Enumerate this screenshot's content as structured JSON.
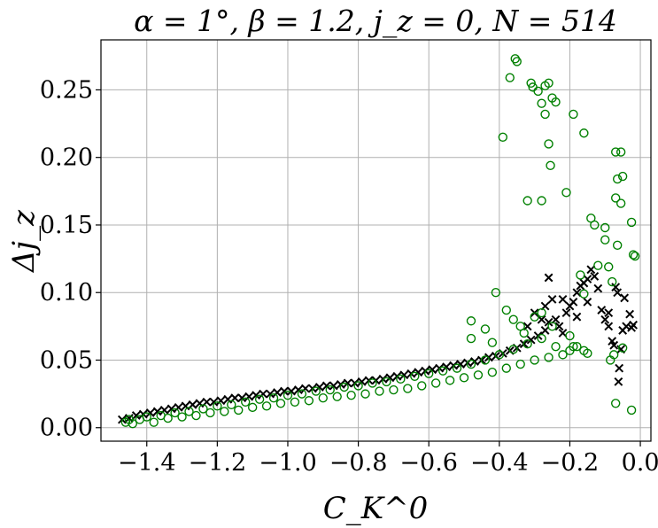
{
  "chart_data": {
    "type": "scatter",
    "title": "α = 1°,  β = 1.2,  j_z = 0,  N = 514",
    "xlabel": "C_K^0",
    "ylabel": "Δj_z",
    "xlim": [
      -1.53,
      0.03
    ],
    "ylim": [
      -0.01,
      0.287
    ],
    "grid": true,
    "x_ticks": [
      -1.4,
      -1.2,
      -1.0,
      -0.8,
      -0.6,
      -0.4,
      -0.2,
      0.0
    ],
    "x_tick_labels": [
      "−1.4",
      "−1.2",
      "−1.0",
      "−0.8",
      "−0.6",
      "−0.4",
      "−0.2",
      "0.0"
    ],
    "y_ticks": [
      0.0,
      0.05,
      0.1,
      0.15,
      0.2,
      0.25
    ],
    "y_tick_labels": [
      "0.00",
      "0.05",
      "0.10",
      "0.15",
      "0.20",
      "0.25"
    ],
    "series": [
      {
        "marker": "x",
        "color": "#000000",
        "points": [
          [
            -1.47,
            0.006
          ],
          [
            -1.45,
            0.007
          ],
          [
            -1.43,
            0.009
          ],
          [
            -1.41,
            0.01
          ],
          [
            -1.39,
            0.011
          ],
          [
            -1.37,
            0.012
          ],
          [
            -1.35,
            0.013
          ],
          [
            -1.33,
            0.014
          ],
          [
            -1.31,
            0.015
          ],
          [
            -1.29,
            0.016
          ],
          [
            -1.27,
            0.017
          ],
          [
            -1.25,
            0.018
          ],
          [
            -1.23,
            0.019
          ],
          [
            -1.21,
            0.019
          ],
          [
            -1.19,
            0.02
          ],
          [
            -1.17,
            0.021
          ],
          [
            -1.15,
            0.022
          ],
          [
            -1.13,
            0.022
          ],
          [
            -1.11,
            0.023
          ],
          [
            -1.09,
            0.024
          ],
          [
            -1.07,
            0.025
          ],
          [
            -1.05,
            0.025
          ],
          [
            -1.03,
            0.026
          ],
          [
            -1.01,
            0.027
          ],
          [
            -0.99,
            0.027
          ],
          [
            -0.97,
            0.028
          ],
          [
            -0.95,
            0.029
          ],
          [
            -0.93,
            0.029
          ],
          [
            -0.91,
            0.03
          ],
          [
            -0.89,
            0.031
          ],
          [
            -0.87,
            0.031
          ],
          [
            -0.85,
            0.032
          ],
          [
            -0.83,
            0.033
          ],
          [
            -0.81,
            0.033
          ],
          [
            -0.79,
            0.034
          ],
          [
            -0.77,
            0.035
          ],
          [
            -0.75,
            0.035
          ],
          [
            -0.73,
            0.036
          ],
          [
            -0.71,
            0.037
          ],
          [
            -0.69,
            0.038
          ],
          [
            -0.67,
            0.039
          ],
          [
            -0.65,
            0.04
          ],
          [
            -0.63,
            0.041
          ],
          [
            -0.61,
            0.042
          ],
          [
            -0.59,
            0.043
          ],
          [
            -0.57,
            0.044
          ],
          [
            -0.55,
            0.045
          ],
          [
            -0.53,
            0.046
          ],
          [
            -0.51,
            0.047
          ],
          [
            -0.49,
            0.048
          ],
          [
            -0.47,
            0.049
          ],
          [
            -0.45,
            0.05
          ],
          [
            -0.43,
            0.052
          ],
          [
            -0.41,
            0.053
          ],
          [
            -0.39,
            0.055
          ],
          [
            -0.37,
            0.057
          ],
          [
            -0.35,
            0.059
          ],
          [
            -0.33,
            0.062
          ],
          [
            -0.31,
            0.065
          ],
          [
            -0.29,
            0.068
          ],
          [
            -0.27,
            0.072
          ],
          [
            -0.3,
            0.085
          ],
          [
            -0.27,
            0.09
          ],
          [
            -0.25,
            0.095
          ],
          [
            -0.26,
            0.111
          ],
          [
            -0.24,
            0.08
          ],
          [
            -0.23,
            0.075
          ],
          [
            -0.22,
            0.07
          ],
          [
            -0.21,
            0.085
          ],
          [
            -0.2,
            0.09
          ],
          [
            -0.19,
            0.093
          ],
          [
            -0.18,
            0.1
          ],
          [
            -0.17,
            0.105
          ],
          [
            -0.16,
            0.107
          ],
          [
            -0.15,
            0.11
          ],
          [
            -0.14,
            0.117
          ],
          [
            -0.13,
            0.112
          ],
          [
            -0.12,
            0.103
          ],
          [
            -0.11,
            0.087
          ],
          [
            -0.1,
            0.08
          ],
          [
            -0.09,
            0.075
          ],
          [
            -0.08,
            0.064
          ],
          [
            -0.075,
            0.061
          ],
          [
            -0.07,
            0.104
          ],
          [
            -0.065,
            0.1
          ],
          [
            -0.06,
            0.044
          ],
          [
            -0.062,
            0.034
          ],
          [
            -0.05,
            0.072
          ],
          [
            -0.045,
            0.096
          ],
          [
            -0.03,
            0.084
          ],
          [
            -0.025,
            0.074
          ],
          [
            -0.02,
            0.076
          ],
          [
            -0.04,
            0.075
          ],
          [
            -0.055,
            0.058
          ],
          [
            -0.09,
            0.085
          ],
          [
            -0.15,
            0.093
          ],
          [
            -0.18,
            0.082
          ],
          [
            -0.22,
            0.095
          ],
          [
            -0.26,
            0.078
          ],
          [
            -0.28,
            0.08
          ],
          [
            -0.32,
            0.075
          ]
        ]
      },
      {
        "marker": "o",
        "color": "#008000",
        "points": [
          [
            -1.46,
            0.004
          ],
          [
            -1.45,
            0.006
          ],
          [
            -1.44,
            0.003
          ],
          [
            -1.42,
            0.006
          ],
          [
            -1.4,
            0.008
          ],
          [
            -1.38,
            0.004
          ],
          [
            -1.36,
            0.009
          ],
          [
            -1.34,
            0.007
          ],
          [
            -1.32,
            0.011
          ],
          [
            -1.3,
            0.008
          ],
          [
            -1.28,
            0.012
          ],
          [
            -1.26,
            0.009
          ],
          [
            -1.24,
            0.014
          ],
          [
            -1.22,
            0.011
          ],
          [
            -1.2,
            0.016
          ],
          [
            -1.18,
            0.012
          ],
          [
            -1.16,
            0.017
          ],
          [
            -1.14,
            0.013
          ],
          [
            -1.12,
            0.019
          ],
          [
            -1.1,
            0.015
          ],
          [
            -1.08,
            0.021
          ],
          [
            -1.06,
            0.016
          ],
          [
            -1.04,
            0.022
          ],
          [
            -1.02,
            0.018
          ],
          [
            -1.0,
            0.024
          ],
          [
            -0.98,
            0.019
          ],
          [
            -0.96,
            0.025
          ],
          [
            -0.94,
            0.02
          ],
          [
            -0.92,
            0.027
          ],
          [
            -0.9,
            0.022
          ],
          [
            -0.88,
            0.028
          ],
          [
            -0.86,
            0.023
          ],
          [
            -0.84,
            0.03
          ],
          [
            -0.82,
            0.024
          ],
          [
            -0.8,
            0.031
          ],
          [
            -0.78,
            0.025
          ],
          [
            -0.76,
            0.033
          ],
          [
            -0.74,
            0.027
          ],
          [
            -0.72,
            0.034
          ],
          [
            -0.7,
            0.028
          ],
          [
            -0.68,
            0.036
          ],
          [
            -0.66,
            0.029
          ],
          [
            -0.64,
            0.038
          ],
          [
            -0.62,
            0.031
          ],
          [
            -0.6,
            0.04
          ],
          [
            -0.58,
            0.033
          ],
          [
            -0.56,
            0.042
          ],
          [
            -0.54,
            0.035
          ],
          [
            -0.52,
            0.044
          ],
          [
            -0.5,
            0.037
          ],
          [
            -0.48,
            0.047
          ],
          [
            -0.46,
            0.039
          ],
          [
            -0.44,
            0.05
          ],
          [
            -0.42,
            0.041
          ],
          [
            -0.4,
            0.054
          ],
          [
            -0.38,
            0.044
          ],
          [
            -0.36,
            0.058
          ],
          [
            -0.34,
            0.047
          ],
          [
            -0.32,
            0.062
          ],
          [
            -0.3,
            0.05
          ],
          [
            -0.28,
            0.066
          ],
          [
            -0.26,
            0.052
          ],
          [
            -0.24,
            0.06
          ],
          [
            -0.22,
            0.054
          ],
          [
            -0.2,
            0.057
          ],
          [
            -0.18,
            0.06
          ],
          [
            -0.48,
            0.066
          ],
          [
            -0.44,
            0.073
          ],
          [
            -0.41,
            0.1
          ],
          [
            -0.38,
            0.087
          ],
          [
            -0.36,
            0.08
          ],
          [
            -0.34,
            0.075
          ],
          [
            -0.33,
            0.07
          ],
          [
            -0.3,
            0.082
          ],
          [
            -0.28,
            0.085
          ],
          [
            -0.25,
            0.075
          ],
          [
            -0.48,
            0.079
          ],
          [
            -0.42,
            0.063
          ],
          [
            -0.355,
            0.273
          ],
          [
            -0.35,
            0.271
          ],
          [
            -0.37,
            0.259
          ],
          [
            -0.31,
            0.255
          ],
          [
            -0.305,
            0.252
          ],
          [
            -0.29,
            0.249
          ],
          [
            -0.27,
            0.253
          ],
          [
            -0.26,
            0.255
          ],
          [
            -0.25,
            0.244
          ],
          [
            -0.24,
            0.241
          ],
          [
            -0.28,
            0.24
          ],
          [
            -0.27,
            0.232
          ],
          [
            -0.19,
            0.232
          ],
          [
            -0.39,
            0.215
          ],
          [
            -0.16,
            0.218
          ],
          [
            -0.26,
            0.21
          ],
          [
            -0.255,
            0.194
          ],
          [
            -0.07,
            0.204
          ],
          [
            -0.055,
            0.204
          ],
          [
            -0.05,
            0.186
          ],
          [
            -0.065,
            0.184
          ],
          [
            -0.21,
            0.174
          ],
          [
            -0.32,
            0.168
          ],
          [
            -0.28,
            0.168
          ],
          [
            -0.07,
            0.17
          ],
          [
            -0.055,
            0.166
          ],
          [
            -0.14,
            0.155
          ],
          [
            -0.13,
            0.15
          ],
          [
            -0.1,
            0.148
          ],
          [
            -0.025,
            0.152
          ],
          [
            -0.1,
            0.139
          ],
          [
            -0.065,
            0.135
          ],
          [
            -0.02,
            0.128
          ],
          [
            -0.015,
            0.127
          ],
          [
            -0.09,
            0.119
          ],
          [
            -0.12,
            0.12
          ],
          [
            -0.08,
            0.108
          ],
          [
            -0.17,
            0.113
          ],
          [
            -0.16,
            0.099
          ],
          [
            -0.075,
            0.054
          ],
          [
            -0.085,
            0.05
          ],
          [
            -0.07,
            0.018
          ],
          [
            -0.025,
            0.013
          ],
          [
            -0.05,
            0.059
          ],
          [
            -0.16,
            0.057
          ],
          [
            -0.15,
            0.055
          ],
          [
            -0.2,
            0.068
          ],
          [
            -0.19,
            0.06
          ]
        ]
      }
    ]
  }
}
